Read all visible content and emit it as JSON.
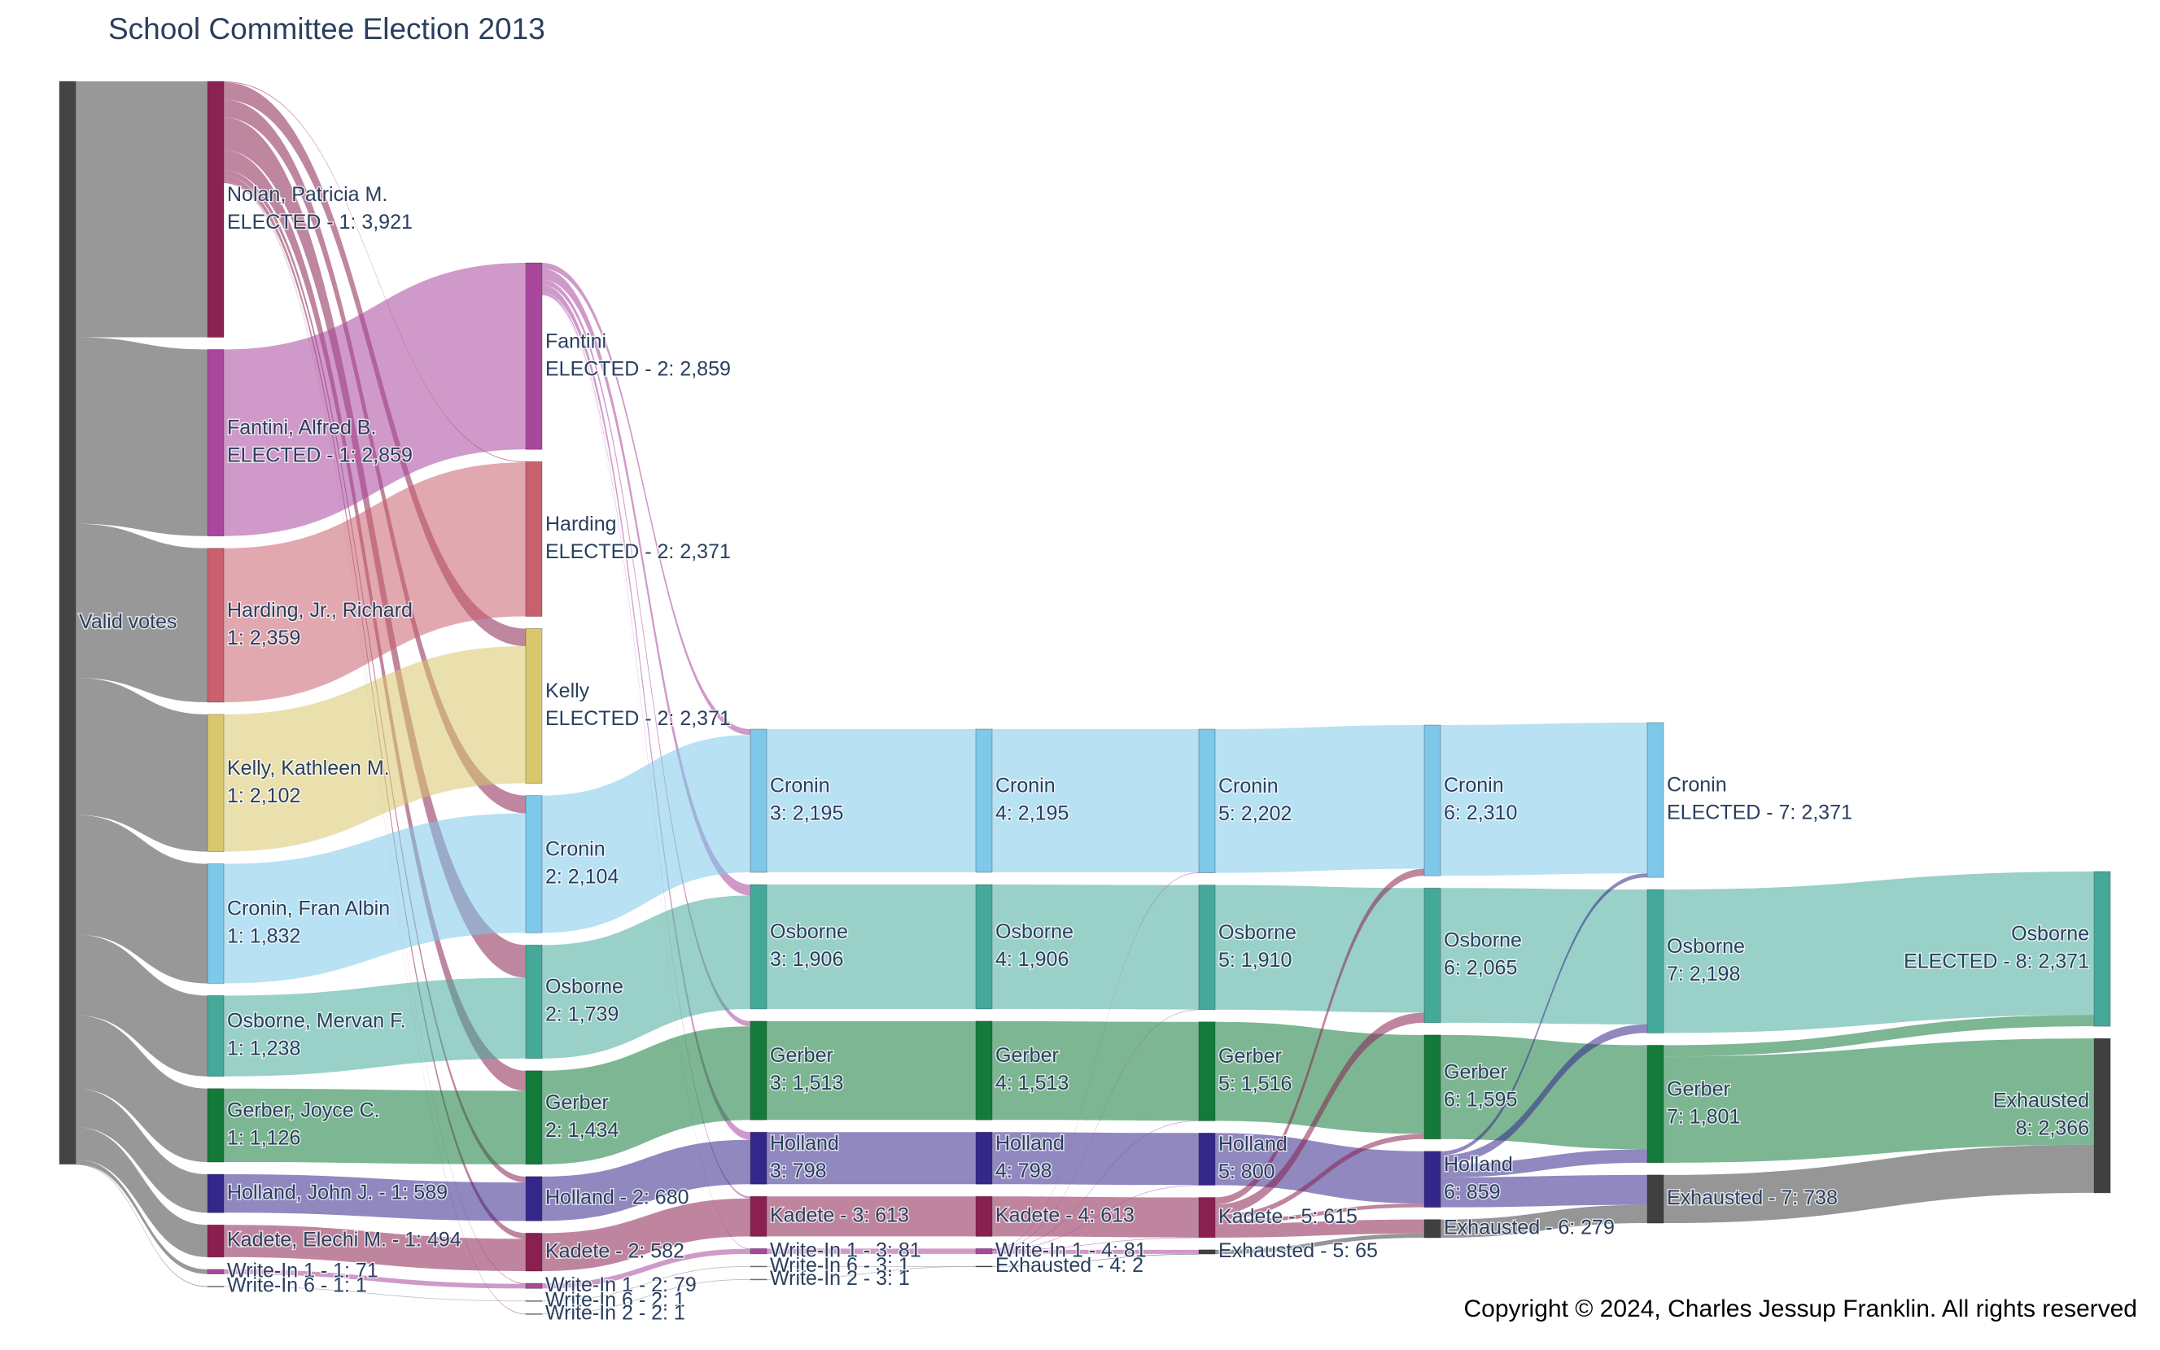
{
  "chart_data": {
    "type": "sankey",
    "title": "School Committee Election 2013",
    "copyright": "Copyright © 2024, Charles Jessup Franklin. All rights reserved",
    "nodes": [
      {
        "lines": [
          "Valid votes"
        ],
        "value": 16592,
        "color": "#444444"
      },
      {
        "lines": [
          "Nolan, Patricia M.",
          "ELECTED - 1: 3,921"
        ],
        "value": 3921,
        "color": "#8b2252"
      },
      {
        "lines": [
          "Fantini, Alfred B.",
          "ELECTED - 1: 2,859"
        ],
        "value": 2859,
        "color": "#a8479c"
      },
      {
        "lines": [
          "Harding, Jr., Richard",
          "1: 2,359"
        ],
        "value": 2359,
        "color": "#c9606e"
      },
      {
        "lines": [
          "Kelly, Kathleen M.",
          "1: 2,102"
        ],
        "value": 2102,
        "color": "#d8c76c"
      },
      {
        "lines": [
          "Cronin, Fran Albin",
          "1: 1,832"
        ],
        "value": 1832,
        "color": "#7ec8ea"
      },
      {
        "lines": [
          "Osborne, Mervan F.",
          "1: 1,238"
        ],
        "value": 1238,
        "color": "#45a99a"
      },
      {
        "lines": [
          "Gerber, Joyce C.",
          "1: 1,126"
        ],
        "value": 1126,
        "color": "#137a3a"
      },
      {
        "lines": [
          "Holland, John J. - 1: 589"
        ],
        "value": 589,
        "color": "#34278a"
      },
      {
        "lines": [
          "Kadete, Elechi M. - 1: 494"
        ],
        "value": 494,
        "color": "#8a2050"
      },
      {
        "lines": [
          "Write-In 1 - 1: 71"
        ],
        "value": 71,
        "color": "#a8479c"
      },
      {
        "lines": [
          "Write-In 6 - 1: 1"
        ],
        "value": 1,
        "color": "#888888"
      },
      {
        "lines": [
          "Fantini",
          "ELECTED - 2: 2,859"
        ],
        "value": 2859,
        "color": "#a8479c"
      },
      {
        "lines": [
          "Harding",
          "ELECTED - 2: 2,371"
        ],
        "value": 2371,
        "color": "#c9606e"
      },
      {
        "lines": [
          "Kelly",
          "ELECTED - 2: 2,371"
        ],
        "value": 2371,
        "color": "#d8c76c"
      },
      {
        "lines": [
          "Cronin",
          "2: 2,104"
        ],
        "value": 2104,
        "color": "#7ec8ea"
      },
      {
        "lines": [
          "Osborne",
          "2: 1,739"
        ],
        "value": 1739,
        "color": "#45a99a"
      },
      {
        "lines": [
          "Gerber",
          "2: 1,434"
        ],
        "value": 1434,
        "color": "#137a3a"
      },
      {
        "lines": [
          "Holland - 2: 680"
        ],
        "value": 680,
        "color": "#34278a"
      },
      {
        "lines": [
          "Kadete - 2: 582"
        ],
        "value": 582,
        "color": "#8a2050"
      },
      {
        "lines": [
          "Write-In 1 - 2: 79"
        ],
        "value": 79,
        "color": "#a8479c"
      },
      {
        "lines": [
          "Write-In 6 - 2: 1"
        ],
        "value": 1,
        "color": "#888888"
      },
      {
        "lines": [
          "Write-In 2 - 2: 1"
        ],
        "value": 1,
        "color": "#888888"
      },
      {
        "lines": [
          "Cronin",
          "3: 2,195"
        ],
        "value": 2195,
        "color": "#7ec8ea"
      },
      {
        "lines": [
          "Osborne",
          "3: 1,906"
        ],
        "value": 1906,
        "color": "#45a99a"
      },
      {
        "lines": [
          "Gerber",
          "3: 1,513"
        ],
        "value": 1513,
        "color": "#137a3a"
      },
      {
        "lines": [
          "Holland",
          "3: 798"
        ],
        "value": 798,
        "color": "#34278a"
      },
      {
        "lines": [
          "Kadete - 3: 613"
        ],
        "value": 613,
        "color": "#8a2050"
      },
      {
        "lines": [
          "Write-In 1 - 3: 81"
        ],
        "value": 81,
        "color": "#a8479c"
      },
      {
        "lines": [
          "Write-In 6 - 3: 1"
        ],
        "value": 1,
        "color": "#888888"
      },
      {
        "lines": [
          "Write-In 2 - 3: 1"
        ],
        "value": 1,
        "color": "#888888"
      },
      {
        "lines": [
          "Cronin",
          "4: 2,195"
        ],
        "value": 2195,
        "color": "#7ec8ea"
      },
      {
        "lines": [
          "Osborne",
          "4: 1,906"
        ],
        "value": 1906,
        "color": "#45a99a"
      },
      {
        "lines": [
          "Gerber",
          "4: 1,513"
        ],
        "value": 1513,
        "color": "#137a3a"
      },
      {
        "lines": [
          "Holland",
          "4: 798"
        ],
        "value": 798,
        "color": "#34278a"
      },
      {
        "lines": [
          "Kadete - 4: 613"
        ],
        "value": 613,
        "color": "#8a2050"
      },
      {
        "lines": [
          "Write-In 1 - 4: 81"
        ],
        "value": 81,
        "color": "#a8479c"
      },
      {
        "lines": [
          "Exhausted - 4: 2"
        ],
        "value": 2,
        "color": "#404040"
      },
      {
        "lines": [
          "Cronin",
          "5: 2,202"
        ],
        "value": 2202,
        "color": "#7ec8ea"
      },
      {
        "lines": [
          "Osborne",
          "5: 1,910"
        ],
        "value": 1910,
        "color": "#45a99a"
      },
      {
        "lines": [
          "Gerber",
          "5: 1,516"
        ],
        "value": 1516,
        "color": "#137a3a"
      },
      {
        "lines": [
          "Holland",
          "5: 800"
        ],
        "value": 800,
        "color": "#34278a"
      },
      {
        "lines": [
          "Kadete - 5: 615"
        ],
        "value": 615,
        "color": "#8a2050"
      },
      {
        "lines": [
          "Exhausted - 5: 65"
        ],
        "value": 65,
        "color": "#404040"
      },
      {
        "lines": [
          "Cronin",
          "6: 2,310"
        ],
        "value": 2310,
        "color": "#7ec8ea"
      },
      {
        "lines": [
          "Osborne",
          "6: 2,065"
        ],
        "value": 2065,
        "color": "#45a99a"
      },
      {
        "lines": [
          "Gerber",
          "6: 1,595"
        ],
        "value": 1595,
        "color": "#137a3a"
      },
      {
        "lines": [
          "Holland",
          "6: 859"
        ],
        "value": 859,
        "color": "#34278a"
      },
      {
        "lines": [
          "Exhausted - 6: 279"
        ],
        "value": 279,
        "color": "#404040"
      },
      {
        "lines": [
          "Cronin",
          "ELECTED - 7: 2,371"
        ],
        "value": 2371,
        "color": "#7ec8ea"
      },
      {
        "lines": [
          "Osborne",
          "7: 2,198"
        ],
        "value": 2198,
        "color": "#45a99a"
      },
      {
        "lines": [
          "Gerber",
          "7: 1,801"
        ],
        "value": 1801,
        "color": "#137a3a"
      },
      {
        "lines": [
          "Exhausted - 7: 738"
        ],
        "value": 738,
        "color": "#404040"
      },
      {
        "lines": [
          "Osborne",
          "ELECTED - 8: 2,371"
        ],
        "value": 2371,
        "color": "#45a99a"
      },
      {
        "lines": [
          "Exhausted",
          "8: 2,366"
        ],
        "value": 2366,
        "color": "#404040"
      }
    ],
    "links": [
      {
        "source": 0,
        "target": 1,
        "value": 3921
      },
      {
        "source": 0,
        "target": 2,
        "value": 2859
      },
      {
        "source": 0,
        "target": 3,
        "value": 2359
      },
      {
        "source": 0,
        "target": 4,
        "value": 2102
      },
      {
        "source": 0,
        "target": 5,
        "value": 1832
      },
      {
        "source": 0,
        "target": 6,
        "value": 1238
      },
      {
        "source": 0,
        "target": 7,
        "value": 1126
      },
      {
        "source": 0,
        "target": 8,
        "value": 589
      },
      {
        "source": 0,
        "target": 9,
        "value": 494
      },
      {
        "source": 0,
        "target": 10,
        "value": 71
      },
      {
        "source": 0,
        "target": 11,
        "value": 1
      },
      {
        "source": 1,
        "target": 13,
        "value": 12
      },
      {
        "source": 1,
        "target": 14,
        "value": 269
      },
      {
        "source": 1,
        "target": 15,
        "value": 272
      },
      {
        "source": 1,
        "target": 16,
        "value": 501
      },
      {
        "source": 1,
        "target": 17,
        "value": 308
      },
      {
        "source": 1,
        "target": 18,
        "value": 91
      },
      {
        "source": 1,
        "target": 19,
        "value": 88
      },
      {
        "source": 1,
        "target": 20,
        "value": 8
      },
      {
        "source": 1,
        "target": 22,
        "value": 1
      },
      {
        "source": 2,
        "target": 12,
        "value": 2859
      },
      {
        "source": 3,
        "target": 13,
        "value": 2359
      },
      {
        "source": 4,
        "target": 14,
        "value": 2102
      },
      {
        "source": 5,
        "target": 15,
        "value": 1832
      },
      {
        "source": 6,
        "target": 16,
        "value": 1238
      },
      {
        "source": 7,
        "target": 17,
        "value": 1126
      },
      {
        "source": 8,
        "target": 18,
        "value": 589
      },
      {
        "source": 9,
        "target": 19,
        "value": 494
      },
      {
        "source": 10,
        "target": 20,
        "value": 71
      },
      {
        "source": 11,
        "target": 21,
        "value": 1
      },
      {
        "source": 12,
        "target": 23,
        "value": 91
      },
      {
        "source": 12,
        "target": 24,
        "value": 167
      },
      {
        "source": 12,
        "target": 25,
        "value": 79
      },
      {
        "source": 12,
        "target": 26,
        "value": 118
      },
      {
        "source": 12,
        "target": 27,
        "value": 31
      },
      {
        "source": 12,
        "target": 28,
        "value": 2
      },
      {
        "source": 15,
        "target": 23,
        "value": 2104
      },
      {
        "source": 16,
        "target": 24,
        "value": 1739
      },
      {
        "source": 17,
        "target": 25,
        "value": 1434
      },
      {
        "source": 18,
        "target": 26,
        "value": 680
      },
      {
        "source": 19,
        "target": 27,
        "value": 582
      },
      {
        "source": 20,
        "target": 28,
        "value": 79
      },
      {
        "source": 21,
        "target": 29,
        "value": 1
      },
      {
        "source": 22,
        "target": 30,
        "value": 1
      },
      {
        "source": 23,
        "target": 31,
        "value": 2195
      },
      {
        "source": 24,
        "target": 32,
        "value": 1906
      },
      {
        "source": 25,
        "target": 33,
        "value": 1513
      },
      {
        "source": 26,
        "target": 34,
        "value": 798
      },
      {
        "source": 27,
        "target": 35,
        "value": 613
      },
      {
        "source": 28,
        "target": 36,
        "value": 81
      },
      {
        "source": 29,
        "target": 37,
        "value": 1
      },
      {
        "source": 30,
        "target": 37,
        "value": 1
      },
      {
        "source": 31,
        "target": 38,
        "value": 2195
      },
      {
        "source": 32,
        "target": 39,
        "value": 1906
      },
      {
        "source": 33,
        "target": 40,
        "value": 1513
      },
      {
        "source": 34,
        "target": 41,
        "value": 798
      },
      {
        "source": 35,
        "target": 42,
        "value": 613
      },
      {
        "source": 37,
        "target": 43,
        "value": 2
      },
      {
        "source": 36,
        "target": 38,
        "value": 7
      },
      {
        "source": 36,
        "target": 39,
        "value": 4
      },
      {
        "source": 36,
        "target": 40,
        "value": 3
      },
      {
        "source": 36,
        "target": 41,
        "value": 2
      },
      {
        "source": 36,
        "target": 42,
        "value": 2
      },
      {
        "source": 36,
        "target": 43,
        "value": 63
      },
      {
        "source": 38,
        "target": 44,
        "value": 2202
      },
      {
        "source": 39,
        "target": 45,
        "value": 1910
      },
      {
        "source": 40,
        "target": 46,
        "value": 1516
      },
      {
        "source": 41,
        "target": 47,
        "value": 800
      },
      {
        "source": 43,
        "target": 48,
        "value": 65
      },
      {
        "source": 42,
        "target": 44,
        "value": 108
      },
      {
        "source": 42,
        "target": 45,
        "value": 155
      },
      {
        "source": 42,
        "target": 46,
        "value": 79
      },
      {
        "source": 42,
        "target": 47,
        "value": 59
      },
      {
        "source": 42,
        "target": 48,
        "value": 214
      },
      {
        "source": 44,
        "target": 49,
        "value": 2310
      },
      {
        "source": 45,
        "target": 50,
        "value": 2065
      },
      {
        "source": 46,
        "target": 51,
        "value": 1595
      },
      {
        "source": 48,
        "target": 52,
        "value": 279
      },
      {
        "source": 47,
        "target": 49,
        "value": 61
      },
      {
        "source": 47,
        "target": 50,
        "value": 133
      },
      {
        "source": 47,
        "target": 51,
        "value": 206
      },
      {
        "source": 47,
        "target": 52,
        "value": 459
      },
      {
        "source": 50,
        "target": 53,
        "value": 2198
      },
      {
        "source": 52,
        "target": 54,
        "value": 738
      },
      {
        "source": 51,
        "target": 53,
        "value": 173
      },
      {
        "source": 51,
        "target": 54,
        "value": 1628
      }
    ]
  }
}
